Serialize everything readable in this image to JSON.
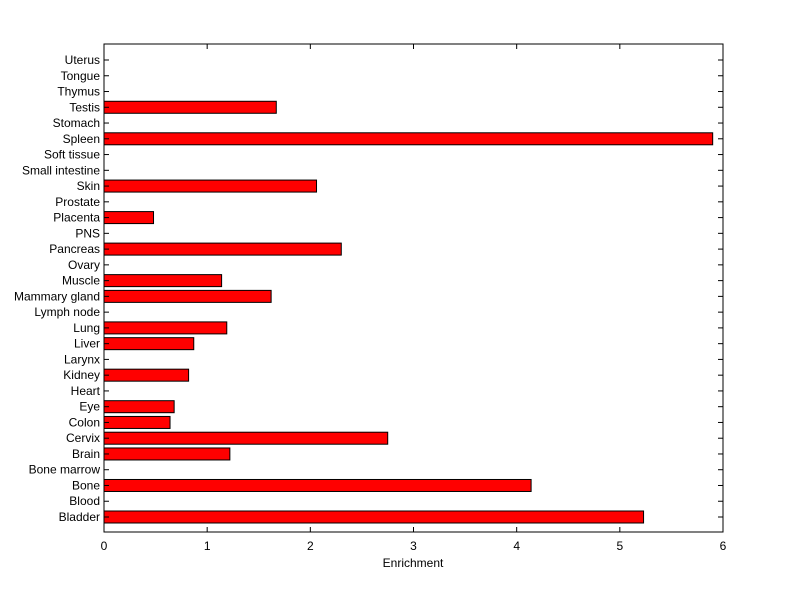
{
  "chart_data": {
    "type": "bar",
    "orientation": "horizontal",
    "title": "",
    "xlabel": "Enrichment",
    "ylabel": "",
    "xlim": [
      0,
      6
    ],
    "xticks": [
      0,
      1,
      2,
      3,
      4,
      5,
      6
    ],
    "grid": false,
    "bar_color": "#ff0000",
    "bar_edge_color": "#000000",
    "categories": [
      "Bladder",
      "Blood",
      "Bone",
      "Bone marrow",
      "Brain",
      "Cervix",
      "Colon",
      "Eye",
      "Heart",
      "Kidney",
      "Larynx",
      "Liver",
      "Lung",
      "Lymph node",
      "Mammary gland",
      "Muscle",
      "Ovary",
      "Pancreas",
      "PNS",
      "Placenta",
      "Prostate",
      "Skin",
      "Small intestine",
      "Soft tissue",
      "Spleen",
      "Stomach",
      "Testis",
      "Thymus",
      "Tongue",
      "Uterus"
    ],
    "values": [
      5.23,
      0,
      4.14,
      0,
      1.22,
      2.75,
      0.64,
      0.68,
      0,
      0.82,
      0,
      0.87,
      1.19,
      0,
      1.62,
      1.14,
      0,
      2.3,
      0,
      0.48,
      0,
      2.06,
      0,
      0,
      5.9,
      0,
      1.67,
      0,
      0,
      0
    ]
  }
}
